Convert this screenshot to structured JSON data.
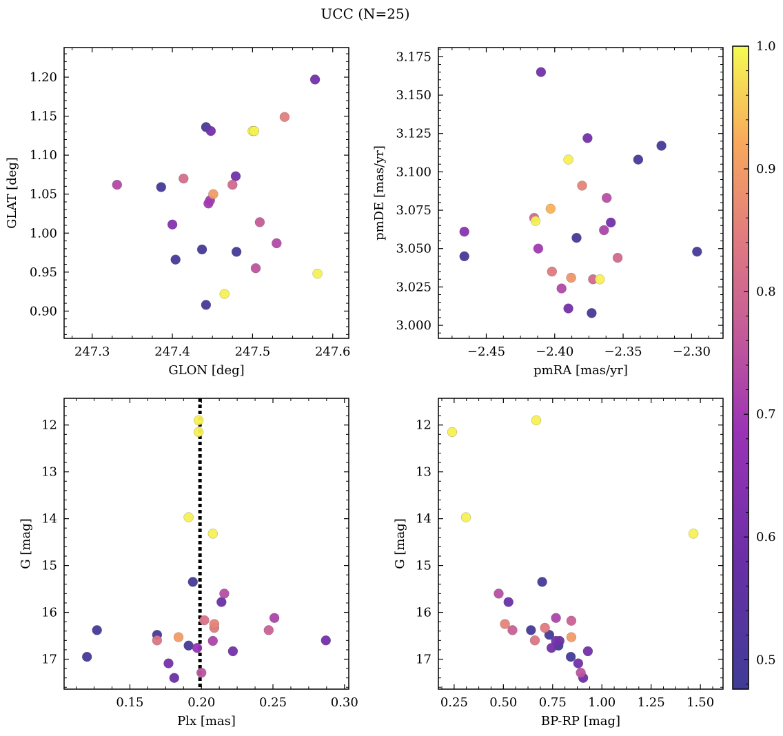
{
  "title": "UCC (N=25)",
  "colorbar": {
    "min": 0.476,
    "max": 1.0,
    "ticks": [
      0.5,
      0.6,
      0.7,
      0.8,
      0.9,
      1.0
    ],
    "tick_labels": [
      "0.5",
      "0.6",
      "0.7",
      "0.8",
      "0.9",
      "1.0"
    ],
    "colormap": "plasma"
  },
  "chart_data": [
    {
      "type": "scatter",
      "xlabel": "GLON [deg]",
      "ylabel": "GLAT [deg]",
      "xlim": [
        247.265,
        247.62
      ],
      "ylim": [
        0.865,
        1.238
      ],
      "xticks": [
        247.3,
        247.4,
        247.5,
        247.6
      ],
      "xtick_labels": [
        "247.3",
        "247.4",
        "247.5",
        "247.6"
      ],
      "yticks": [
        0.9,
        0.95,
        1.0,
        1.05,
        1.1,
        1.15,
        1.2
      ],
      "ytick_labels": [
        "0.90",
        "0.95",
        "1.00",
        "1.05",
        "1.10",
        "1.15",
        "1.20"
      ],
      "x": [
        247.331,
        247.386,
        247.404,
        247.4,
        247.414,
        247.437,
        247.442,
        247.442,
        247.445,
        247.447,
        247.448,
        247.451,
        247.465,
        247.475,
        247.479,
        247.48,
        247.5,
        247.502,
        247.504,
        247.509,
        247.53,
        247.54,
        247.578,
        247.581,
        247.502
      ],
      "y": [
        1.062,
        1.059,
        0.966,
        1.011,
        1.07,
        0.979,
        1.136,
        0.908,
        1.038,
        1.042,
        1.131,
        1.05,
        0.922,
        1.062,
        1.073,
        0.976,
        1.131,
        1.131,
        0.955,
        1.014,
        0.987,
        1.149,
        1.197,
        0.948,
        1.131
      ],
      "c": [
        0.73,
        0.49,
        0.49,
        0.64,
        0.81,
        0.49,
        0.49,
        0.49,
        0.7,
        0.7,
        0.6,
        0.9,
        0.99,
        0.8,
        0.6,
        0.49,
        0.99,
        0.99,
        0.75,
        0.77,
        0.73,
        0.85,
        0.6,
        0.99,
        0.99
      ]
    },
    {
      "type": "scatter",
      "xlabel": "pmRA [mas/yr]",
      "ylabel": "pmDE [mas/yr]",
      "xlim": [
        -2.485,
        -2.277
      ],
      "ylim": [
        2.9915,
        3.181
      ],
      "xticks": [
        -2.45,
        -2.4,
        -2.35,
        -2.3
      ],
      "xtick_labels": [
        "−2.45",
        "−2.40",
        "−2.35",
        "−2.30"
      ],
      "yticks": [
        3.0,
        3.025,
        3.05,
        3.075,
        3.1,
        3.125,
        3.15,
        3.175
      ],
      "ytick_labels": [
        "3.000",
        "3.025",
        "3.050",
        "3.075",
        "3.100",
        "3.125",
        "3.150",
        "3.175"
      ],
      "x": [
        -2.466,
        -2.466,
        -2.415,
        -2.414,
        -2.412,
        -2.41,
        -2.403,
        -2.402,
        -2.395,
        -2.39,
        -2.39,
        -2.388,
        -2.384,
        -2.38,
        -2.376,
        -2.373,
        -2.372,
        -2.367,
        -2.364,
        -2.362,
        -2.359,
        -2.354,
        -2.339,
        -2.322,
        -2.296
      ],
      "y": [
        3.061,
        3.045,
        3.07,
        3.068,
        3.05,
        3.165,
        3.076,
        3.035,
        3.024,
        3.108,
        3.011,
        3.031,
        3.057,
        3.091,
        3.122,
        3.008,
        3.03,
        3.03,
        3.062,
        3.083,
        3.067,
        3.044,
        3.108,
        3.117,
        3.048
      ],
      "c": [
        0.65,
        0.49,
        0.8,
        0.99,
        0.7,
        0.6,
        0.93,
        0.84,
        0.73,
        0.99,
        0.6,
        0.89,
        0.49,
        0.86,
        0.6,
        0.49,
        0.8,
        0.99,
        0.72,
        0.74,
        0.6,
        0.8,
        0.49,
        0.49,
        0.49
      ]
    },
    {
      "type": "scatter",
      "xlabel": "Plx [mas]",
      "ylabel": "G [mag]",
      "xlim": [
        0.104,
        0.303
      ],
      "ylim": [
        17.64,
        11.43
      ],
      "y_inverted": true,
      "xticks": [
        0.15,
        0.2,
        0.25,
        0.3
      ],
      "xtick_labels": [
        "0.15",
        "0.20",
        "0.25",
        "0.30"
      ],
      "yticks": [
        12,
        13,
        14,
        15,
        16,
        17
      ],
      "ytick_labels": [
        "12",
        "13",
        "14",
        "15",
        "16",
        "17"
      ],
      "vline": {
        "x": 0.199,
        "style": "dotted"
      },
      "x": [
        0.198,
        0.198,
        0.191,
        0.208,
        0.194,
        0.216,
        0.214,
        0.202,
        0.209,
        0.209,
        0.251,
        0.247,
        0.127,
        0.169,
        0.169,
        0.184,
        0.287,
        0.208,
        0.222,
        0.191,
        0.197,
        0.12,
        0.177,
        0.2,
        0.181
      ],
      "y": [
        11.9,
        12.15,
        13.97,
        14.32,
        15.35,
        15.6,
        15.78,
        16.17,
        16.25,
        16.33,
        16.12,
        16.38,
        16.38,
        16.48,
        16.6,
        16.53,
        16.6,
        16.61,
        16.83,
        16.71,
        16.76,
        16.95,
        17.09,
        17.29,
        17.4
      ],
      "c": [
        0.99,
        0.99,
        0.99,
        0.99,
        0.49,
        0.74,
        0.58,
        0.82,
        0.86,
        0.84,
        0.72,
        0.78,
        0.49,
        0.49,
        0.83,
        0.9,
        0.6,
        0.72,
        0.6,
        0.49,
        0.68,
        0.49,
        0.6,
        0.75,
        0.58
      ]
    },
    {
      "type": "scatter",
      "xlabel": "BP-RP [mag]",
      "ylabel": "G [mag]",
      "xlim": [
        0.17,
        1.615
      ],
      "ylim": [
        17.64,
        11.43
      ],
      "y_inverted": true,
      "xticks": [
        0.25,
        0.5,
        0.75,
        1.0,
        1.25,
        1.5
      ],
      "xtick_labels": [
        "0.25",
        "0.50",
        "0.75",
        "1.00",
        "1.25",
        "1.50"
      ],
      "yticks": [
        12,
        13,
        14,
        15,
        16,
        17
      ],
      "ytick_labels": [
        "12",
        "13",
        "14",
        "15",
        "16",
        "17"
      ],
      "x": [
        0.667,
        0.24,
        0.31,
        1.465,
        0.697,
        0.476,
        0.526,
        0.767,
        0.845,
        0.508,
        0.711,
        0.546,
        0.64,
        0.733,
        0.785,
        0.66,
        0.845,
        0.744,
        0.929,
        0.767,
        0.78,
        0.842,
        0.88,
        0.893,
        0.905
      ],
      "y": [
        11.9,
        12.15,
        13.97,
        14.32,
        15.35,
        15.6,
        15.78,
        16.12,
        16.18,
        16.25,
        16.33,
        16.38,
        16.38,
        16.48,
        16.61,
        16.6,
        16.53,
        16.76,
        16.83,
        16.61,
        16.71,
        16.95,
        17.09,
        17.29,
        17.4
      ],
      "c": [
        0.99,
        0.99,
        0.99,
        0.99,
        0.49,
        0.74,
        0.58,
        0.72,
        0.78,
        0.86,
        0.84,
        0.78,
        0.49,
        0.49,
        0.58,
        0.83,
        0.9,
        0.6,
        0.6,
        0.6,
        0.49,
        0.49,
        0.6,
        0.75,
        0.58
      ]
    }
  ]
}
